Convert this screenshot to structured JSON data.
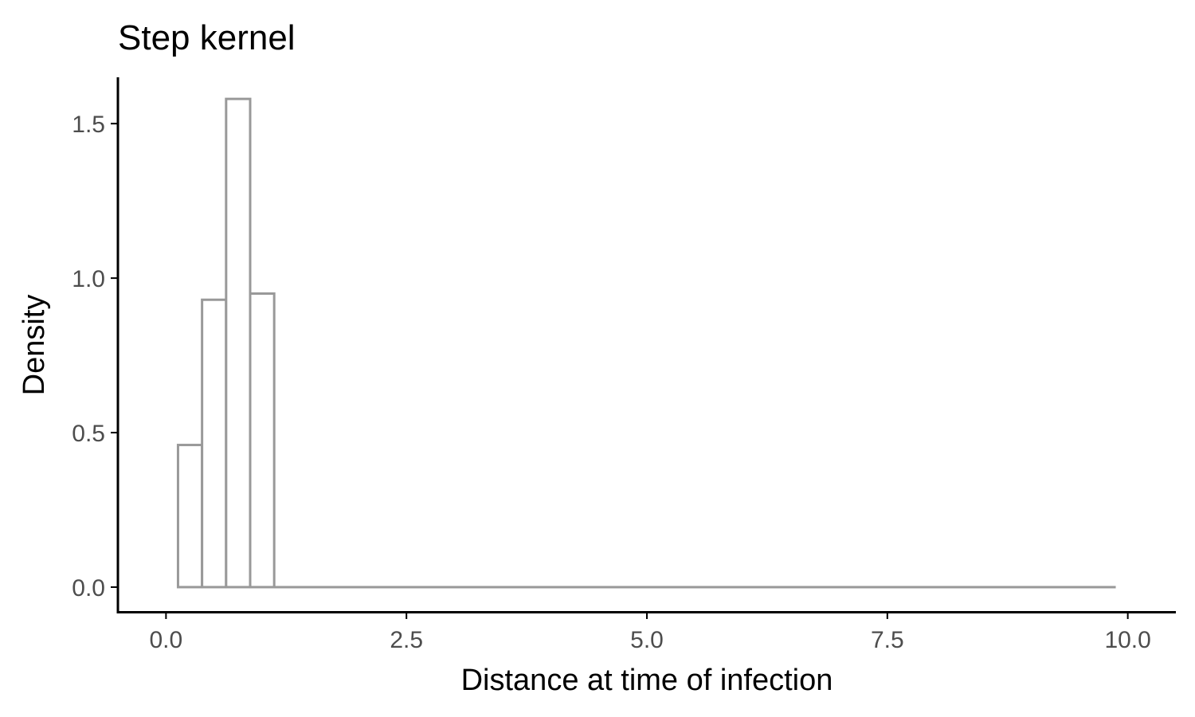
{
  "chart_data": {
    "type": "bar",
    "title": "Step kernel",
    "xlabel": "Distance at time of infection",
    "ylabel": "Density",
    "xlim": [
      -0.5,
      10.5
    ],
    "ylim": [
      -0.08,
      1.65
    ],
    "x_ticks": [
      {
        "value": 0.0,
        "label": "0.0"
      },
      {
        "value": 2.5,
        "label": "2.5"
      },
      {
        "value": 5.0,
        "label": "5.0"
      },
      {
        "value": 7.5,
        "label": "7.5"
      },
      {
        "value": 10.0,
        "label": "10.0"
      }
    ],
    "y_ticks": [
      {
        "value": 0.0,
        "label": "0.0"
      },
      {
        "value": 0.5,
        "label": "0.5"
      },
      {
        "value": 1.0,
        "label": "1.0"
      },
      {
        "value": 1.5,
        "label": "1.5"
      }
    ],
    "bin_start": 0.125,
    "bin_end": 9.875,
    "bin_width": 0.25,
    "bins": [
      {
        "x": 0.25,
        "density": 0.46
      },
      {
        "x": 0.5,
        "density": 0.93
      },
      {
        "x": 0.75,
        "density": 1.58
      },
      {
        "x": 1.0,
        "density": 0.95
      }
    ],
    "grid": false,
    "legend": "none",
    "colors": {
      "bar_outline": "#999999",
      "bar_fill": "#ffffff",
      "axis": "#000000"
    }
  }
}
